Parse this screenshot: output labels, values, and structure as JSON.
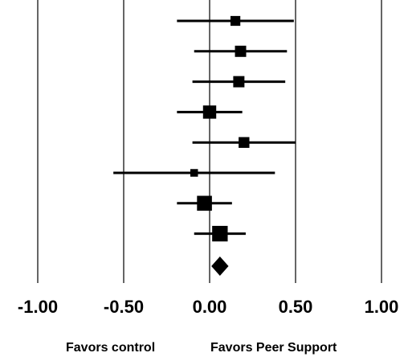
{
  "chart_data": {
    "type": "forest",
    "title": "",
    "xlabel": "",
    "ylabel": "",
    "xlim": [
      -1.0,
      1.0
    ],
    "ticks": [
      -1.0,
      -0.5,
      0.0,
      0.5,
      1.0
    ],
    "tick_labels": [
      "-1.00",
      "-0.50",
      "0.00",
      "0.50",
      "1.00"
    ],
    "gridlines_at_ticks": true,
    "studies": [
      {
        "estimate": 0.15,
        "ci_low": -0.19,
        "ci_high": 0.49,
        "weight": 1.0
      },
      {
        "estimate": 0.18,
        "ci_low": -0.09,
        "ci_high": 0.45,
        "weight": 1.3
      },
      {
        "estimate": 0.17,
        "ci_low": -0.1,
        "ci_high": 0.44,
        "weight": 1.3
      },
      {
        "estimate": 0.0,
        "ci_low": -0.19,
        "ci_high": 0.19,
        "weight": 1.8
      },
      {
        "estimate": 0.2,
        "ci_low": -0.1,
        "ci_high": 0.5,
        "weight": 1.2
      },
      {
        "estimate": -0.09,
        "ci_low": -0.56,
        "ci_high": 0.38,
        "weight": 0.6
      },
      {
        "estimate": -0.03,
        "ci_low": -0.19,
        "ci_high": 0.13,
        "weight": 2.3
      },
      {
        "estimate": 0.06,
        "ci_low": -0.09,
        "ci_high": 0.21,
        "weight": 2.5
      }
    ],
    "pooled": {
      "estimate": 0.06,
      "ci_low": 0.01,
      "ci_high": 0.11
    },
    "direction_labels": {
      "left": "Favors control",
      "right": "Favors Peer Support"
    }
  }
}
